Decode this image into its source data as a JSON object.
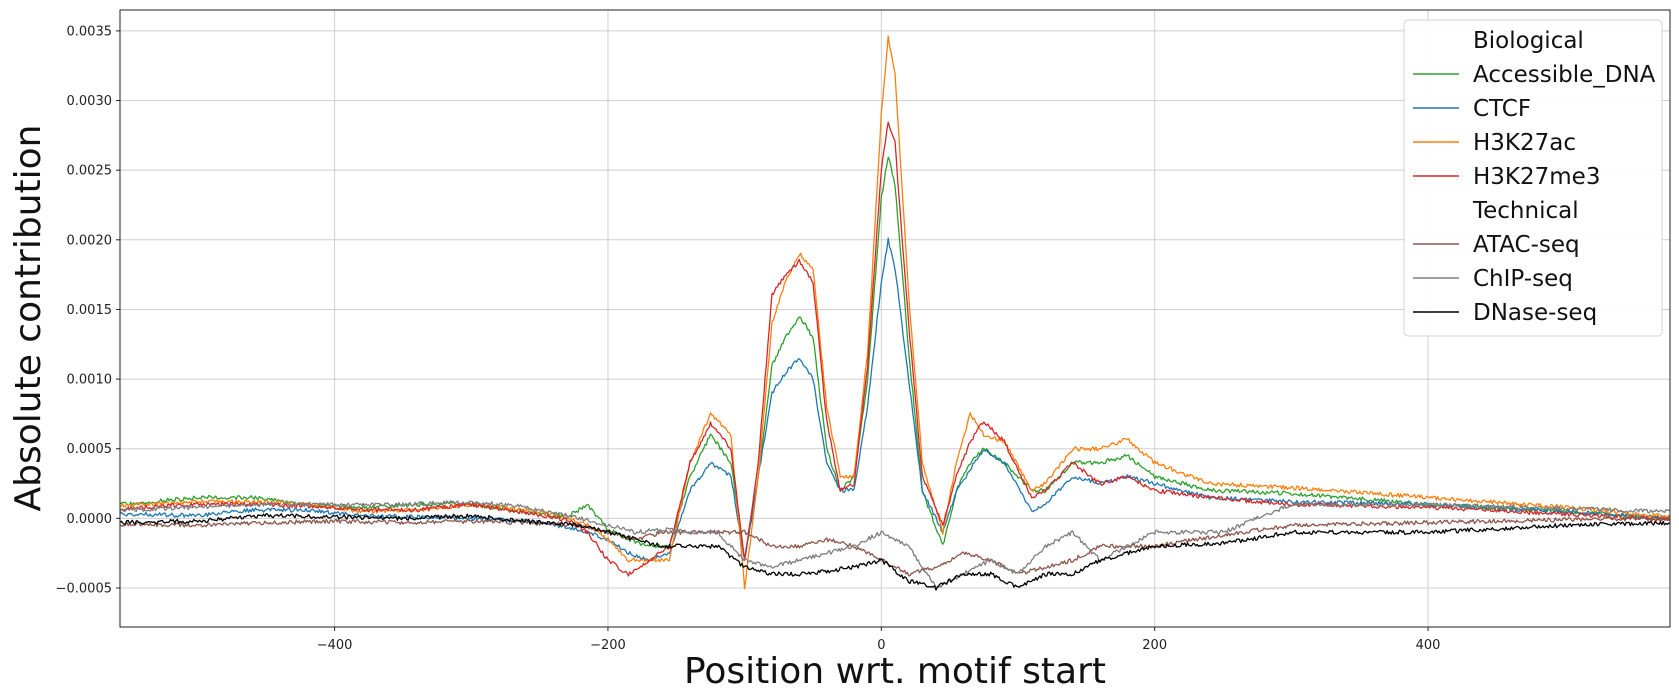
{
  "chart_data": {
    "type": "line",
    "title": "",
    "xlabel": "Position wrt. motif start",
    "ylabel": "Absolute contribution",
    "xlim": [
      -557,
      577
    ],
    "ylim": [
      -0.00078,
      0.00365
    ],
    "xticks": [
      -400,
      -200,
      0,
      200,
      400
    ],
    "xtick_labels": [
      "−400",
      "−200",
      "0",
      "200",
      "400"
    ],
    "yticks": [
      -0.0005,
      0.0,
      0.0005,
      0.001,
      0.0015,
      0.002,
      0.0025,
      0.003,
      0.0035
    ],
    "ytick_labels": [
      "−0.0005",
      "0.0000",
      "0.0005",
      "0.0010",
      "0.0015",
      "0.0020",
      "0.0025",
      "0.0030",
      "0.0035"
    ],
    "grid": true,
    "legend_position": "top-right",
    "legend_groups": [
      {
        "title": "Biological",
        "series": [
          "Accessible_DNA",
          "CTCF",
          "H3K27ac",
          "H3K27me3"
        ]
      },
      {
        "title": "Technical",
        "series": [
          "ATAC-seq",
          "ChIP-seq",
          "DNase-seq"
        ]
      }
    ],
    "series": [
      {
        "name": "Accessible_DNA",
        "color": "#2ca02c",
        "x": [
          -557,
          -500,
          -460,
          -420,
          -380,
          -340,
          -300,
          -260,
          -230,
          -215,
          -200,
          -185,
          -170,
          -155,
          -140,
          -125,
          -110,
          -100,
          -90,
          -80,
          -70,
          -60,
          -50,
          -40,
          -30,
          -20,
          -10,
          0,
          5,
          10,
          20,
          30,
          45,
          55,
          65,
          75,
          90,
          110,
          120,
          140,
          160,
          180,
          200,
          240,
          300,
          400,
          500,
          577
        ],
        "y": [
          0.0001,
          0.00015,
          0.00015,
          0.0001,
          8e-05,
          0.0001,
          0.0001,
          5e-05,
          1e-05,
          0.0001,
          -8e-05,
          -0.00015,
          -0.0002,
          -0.0002,
          0.0003,
          0.0006,
          0.0004,
          -0.0003,
          0.0003,
          0.0011,
          0.0013,
          0.00145,
          0.0013,
          0.0005,
          0.0002,
          0.0003,
          0.001,
          0.0023,
          0.0026,
          0.0024,
          0.0012,
          0.0002,
          -0.0002,
          0.0002,
          0.0004,
          0.0005,
          0.0004,
          0.0002,
          0.0002,
          0.0004,
          0.0004,
          0.00045,
          0.0003,
          0.0002,
          0.00018,
          0.0001,
          5e-05,
          0.0
        ]
      },
      {
        "name": "CTCF",
        "color": "#1f77b4",
        "x": [
          -557,
          -500,
          -460,
          -420,
          -380,
          -340,
          -300,
          -260,
          -230,
          -215,
          -200,
          -185,
          -170,
          -155,
          -140,
          -125,
          -110,
          -100,
          -90,
          -80,
          -70,
          -60,
          -50,
          -40,
          -30,
          -20,
          -10,
          0,
          5,
          10,
          20,
          30,
          45,
          55,
          65,
          75,
          90,
          110,
          120,
          140,
          160,
          180,
          200,
          240,
          300,
          400,
          500,
          577
        ],
        "y": [
          3e-05,
          2e-05,
          6e-05,
          6e-05,
          2e-05,
          1e-05,
          0.0,
          -2e-05,
          -6e-05,
          -0.0001,
          -0.00015,
          -0.00025,
          -0.0003,
          -0.00025,
          0.0002,
          0.0004,
          0.0003,
          -0.0003,
          0.0003,
          0.0009,
          0.00105,
          0.00115,
          0.001,
          0.0004,
          0.0002,
          0.0002,
          0.0008,
          0.0017,
          0.002,
          0.0018,
          0.001,
          0.0002,
          -0.0001,
          0.0002,
          0.00035,
          0.0005,
          0.0004,
          5e-05,
          0.0001,
          0.0003,
          0.00025,
          0.0003,
          0.00025,
          0.00015,
          0.00012,
          0.0001,
          5e-05,
          0.0
        ]
      },
      {
        "name": "H3K27ac",
        "color": "#ff7f0e",
        "x": [
          -557,
          -500,
          -460,
          -420,
          -380,
          -340,
          -300,
          -260,
          -230,
          -215,
          -200,
          -185,
          -170,
          -155,
          -140,
          -125,
          -110,
          -100,
          -90,
          -80,
          -70,
          -60,
          -50,
          -40,
          -30,
          -20,
          -10,
          0,
          5,
          10,
          20,
          30,
          45,
          55,
          65,
          75,
          90,
          110,
          120,
          140,
          160,
          180,
          200,
          240,
          300,
          400,
          500,
          577
        ],
        "y": [
          9e-05,
          0.00012,
          0.00012,
          0.0001,
          5e-05,
          6e-05,
          0.0001,
          6e-05,
          1e-05,
          -5e-05,
          -0.00015,
          -0.0003,
          -0.0003,
          -0.0003,
          0.0004,
          0.00075,
          0.0006,
          -0.0005,
          0.0003,
          0.0014,
          0.0017,
          0.0019,
          0.0018,
          0.0008,
          0.0003,
          0.0003,
          0.0012,
          0.0029,
          0.00345,
          0.0032,
          0.0016,
          0.0004,
          -0.0001,
          0.0004,
          0.00075,
          0.0006,
          0.00055,
          0.0002,
          0.00025,
          0.0005,
          0.0005,
          0.00057,
          0.0004,
          0.00025,
          0.00022,
          0.00015,
          8e-05,
          1e-05
        ]
      },
      {
        "name": "H3K27me3",
        "color": "#d62728",
        "x": [
          -557,
          -500,
          -460,
          -420,
          -380,
          -340,
          -300,
          -260,
          -230,
          -215,
          -200,
          -185,
          -170,
          -155,
          -140,
          -125,
          -110,
          -100,
          -90,
          -80,
          -70,
          -60,
          -50,
          -40,
          -30,
          -20,
          -10,
          0,
          5,
          10,
          20,
          30,
          45,
          55,
          65,
          75,
          90,
          110,
          120,
          140,
          160,
          180,
          200,
          240,
          300,
          400,
          500,
          577
        ],
        "y": [
          7e-05,
          0.0001,
          0.0001,
          9e-05,
          6e-05,
          6e-05,
          0.0001,
          4e-05,
          -1e-05,
          -0.0001,
          -0.0003,
          -0.0004,
          -0.0003,
          -0.0002,
          0.0004,
          0.00068,
          0.0005,
          -0.0003,
          0.0004,
          0.0016,
          0.00175,
          0.00185,
          0.0017,
          0.0007,
          0.0002,
          0.00025,
          0.0011,
          0.0025,
          0.00285,
          0.0027,
          0.0014,
          0.0003,
          -5e-05,
          0.0003,
          0.00055,
          0.0007,
          0.00055,
          0.00015,
          0.0002,
          0.0004,
          0.00025,
          0.0003,
          0.0002,
          0.00015,
          0.0001,
          8e-05,
          3e-05,
          -1e-05
        ]
      },
      {
        "name": "ATAC-seq",
        "color": "#8c564b",
        "x": [
          -557,
          -500,
          -450,
          -400,
          -350,
          -300,
          -260,
          -220,
          -200,
          -180,
          -160,
          -140,
          -120,
          -100,
          -80,
          -60,
          -40,
          -20,
          0,
          20,
          40,
          60,
          80,
          100,
          120,
          140,
          160,
          200,
          250,
          300,
          400,
          500,
          577
        ],
        "y": [
          -4e-05,
          -5e-05,
          -3e-05,
          -2e-05,
          -3e-05,
          -2e-05,
          -3e-05,
          -5e-05,
          -0.0001,
          -0.00015,
          -0.0001,
          -0.0001,
          -0.0001,
          -0.0001,
          -0.0002,
          -0.0002,
          -0.00015,
          -0.0002,
          -0.0003,
          -0.0004,
          -0.00035,
          -0.00025,
          -0.0003,
          -0.0004,
          -0.00035,
          -0.0003,
          -0.0002,
          -0.0002,
          -0.00012,
          -5e-05,
          -3e-05,
          -1e-05,
          0.0
        ]
      },
      {
        "name": "ChIP-seq",
        "color": "#7f7f7f",
        "x": [
          -557,
          -500,
          -450,
          -400,
          -350,
          -300,
          -260,
          -220,
          -200,
          -180,
          -160,
          -140,
          -120,
          -100,
          -80,
          -60,
          -40,
          -20,
          0,
          20,
          40,
          60,
          80,
          100,
          120,
          140,
          160,
          200,
          250,
          300,
          400,
          500,
          577
        ],
        "y": [
          6e-05,
          8e-05,
          0.0001,
          0.0001,
          0.0001,
          0.00012,
          8e-05,
          0.0,
          -5e-05,
          -0.0001,
          -8e-05,
          -0.0001,
          -0.0001,
          -0.0003,
          -0.00035,
          -0.0003,
          -0.00025,
          -0.0002,
          -0.0001,
          -0.0002,
          -0.0005,
          -0.0004,
          -0.0003,
          -0.0004,
          -0.0002,
          -0.0001,
          -0.0003,
          -0.0001,
          -0.0001,
          0.0001,
          0.0001,
          7e-05,
          5e-05
        ]
      },
      {
        "name": "DNase-seq",
        "color": "#000000",
        "x": [
          -557,
          -500,
          -450,
          -400,
          -350,
          -300,
          -260,
          -220,
          -200,
          -180,
          -160,
          -140,
          -120,
          -100,
          -80,
          -60,
          -40,
          -20,
          0,
          20,
          40,
          60,
          80,
          100,
          120,
          140,
          160,
          200,
          250,
          300,
          400,
          500,
          577
        ],
        "y": [
          -3e-05,
          -2e-05,
          2e-05,
          1e-05,
          0.0,
          2e-05,
          -2e-05,
          -5e-05,
          -0.0001,
          -0.00015,
          -0.0002,
          -0.0002,
          -0.0002,
          -0.00035,
          -0.0004,
          -0.0004,
          -0.00038,
          -0.00035,
          -0.0003,
          -0.00045,
          -0.0005,
          -0.0004,
          -0.0004,
          -0.0005,
          -0.0004,
          -0.0004,
          -0.0003,
          -0.0002,
          -0.00018,
          -0.0001,
          -0.0001,
          -5e-05,
          -3e-05
        ]
      }
    ]
  }
}
